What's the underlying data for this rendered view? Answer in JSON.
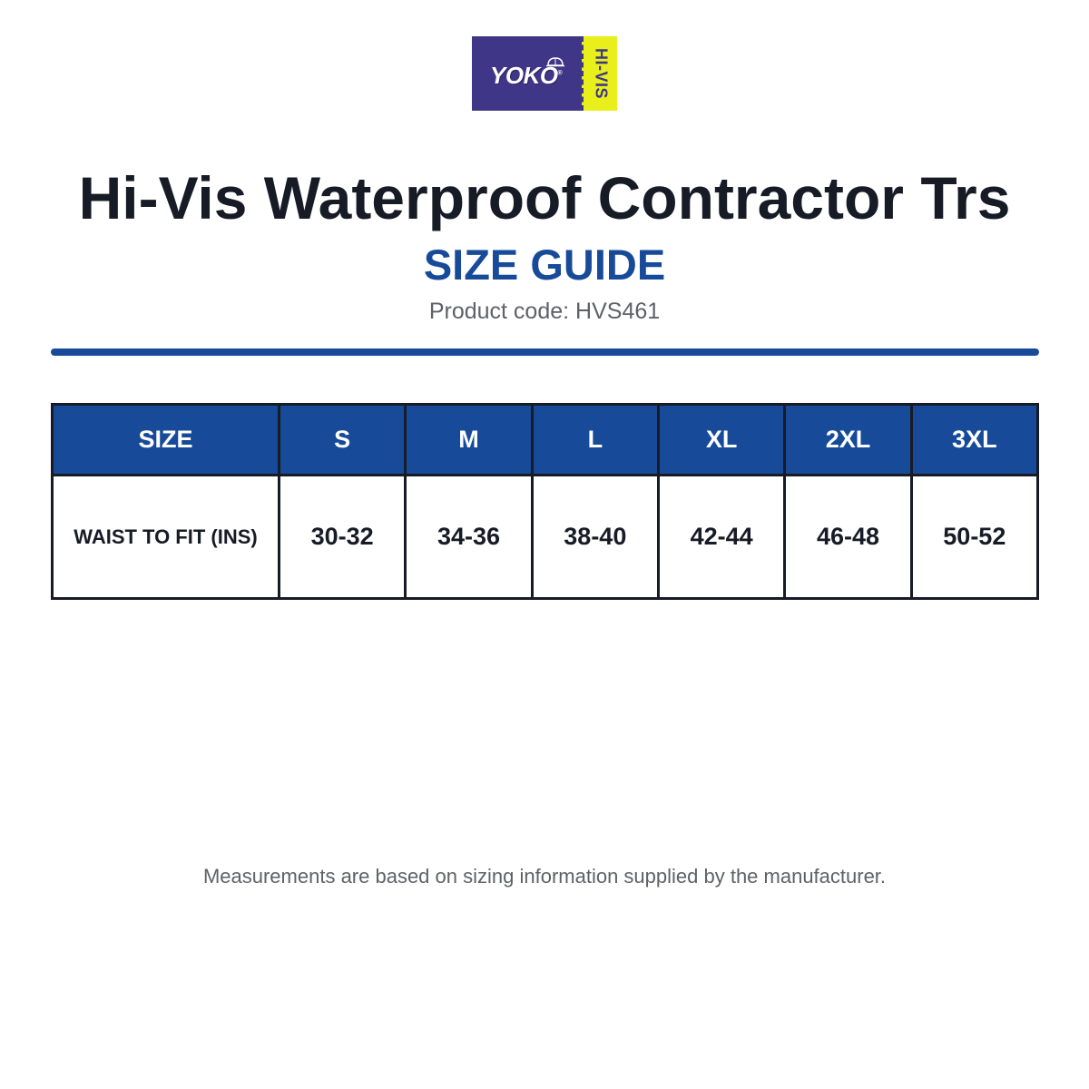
{
  "brand": {
    "logo_word": "YOKO",
    "logo_reg": "®",
    "logo_side": "HI-VIS",
    "colors": {
      "primary": "#3f3688",
      "accent": "#e8ef1a"
    }
  },
  "header": {
    "title": "Hi-Vis Waterproof Contractor Trs",
    "subtitle": "SIZE GUIDE",
    "product_code": "Product code: HVS461"
  },
  "table": {
    "header_label": "SIZE",
    "sizes": [
      "S",
      "M",
      "L",
      "XL",
      "2XL",
      "3XL"
    ],
    "rows": [
      {
        "label": "WAIST TO FIT (INS)",
        "values": [
          "30-32",
          "34-36",
          "38-40",
          "42-44",
          "46-48",
          "50-52"
        ]
      }
    ]
  },
  "footer": {
    "note": "Measurements are based on sizing information supplied by the manufacturer."
  },
  "theme": {
    "accent": "#174b99",
    "text_dark": "#161b26",
    "text_muted": "#5f6168"
  }
}
